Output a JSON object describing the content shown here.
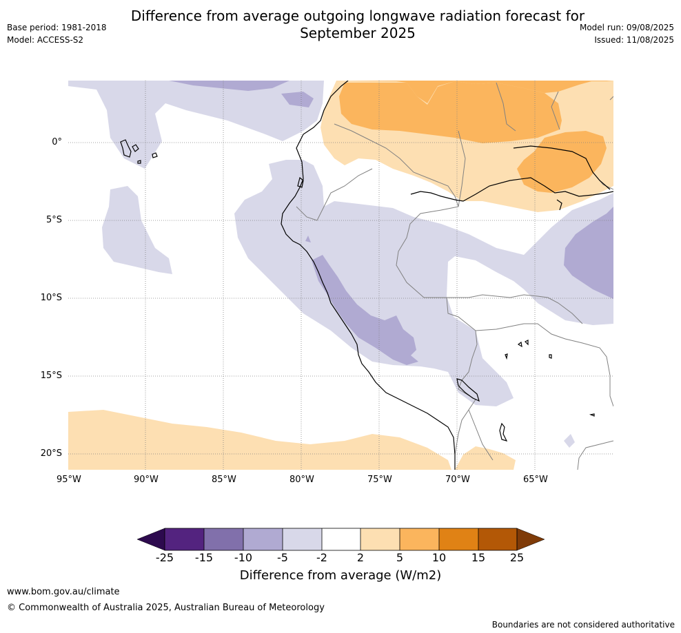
{
  "header": {
    "base_period": "Base period: 1981-2018",
    "model": "Model: ACCESS-S2",
    "title_line1": "Difference from average outgoing longwave radiation forecast for",
    "title_line2": "September 2025",
    "model_run": "Model run: 09/08/2025",
    "issued": "Issued: 11/08/2025"
  },
  "map": {
    "lat_labels": [
      "0°",
      "5°S",
      "10°S",
      "15°S",
      "20°S"
    ],
    "lon_labels": [
      "95°W",
      "90°W",
      "85°W",
      "80°W",
      "75°W",
      "70°W",
      "65°W"
    ],
    "colors": {
      "neg_2_5": "#d8d8e9",
      "neg_5_10": "#b0aad2",
      "pos_2_5": "#fddfb2",
      "pos_5_10": "#fbb55d",
      "coast": "#000000",
      "border": "#808080",
      "grid": "#808080"
    }
  },
  "colorbar": {
    "title": "Difference from average (W/m2)",
    "tick_labels": [
      "-25",
      "-15",
      "-10",
      "-5",
      "-2",
      "2",
      "5",
      "10",
      "15",
      "25"
    ],
    "colors": [
      "#2d0a4e",
      "#53237f",
      "#8170ab",
      "#b0aad2",
      "#d8d8e9",
      "#ffffff",
      "#fddfb2",
      "#fbb55d",
      "#e08215",
      "#b35806",
      "#7f3b08"
    ]
  },
  "footer": {
    "website": "www.bom.gov.au/climate",
    "copyright": "© Commonwealth of Australia 2025, Australian Bureau of Meteorology",
    "disclaimer": "Boundaries are not considered authoritative"
  }
}
